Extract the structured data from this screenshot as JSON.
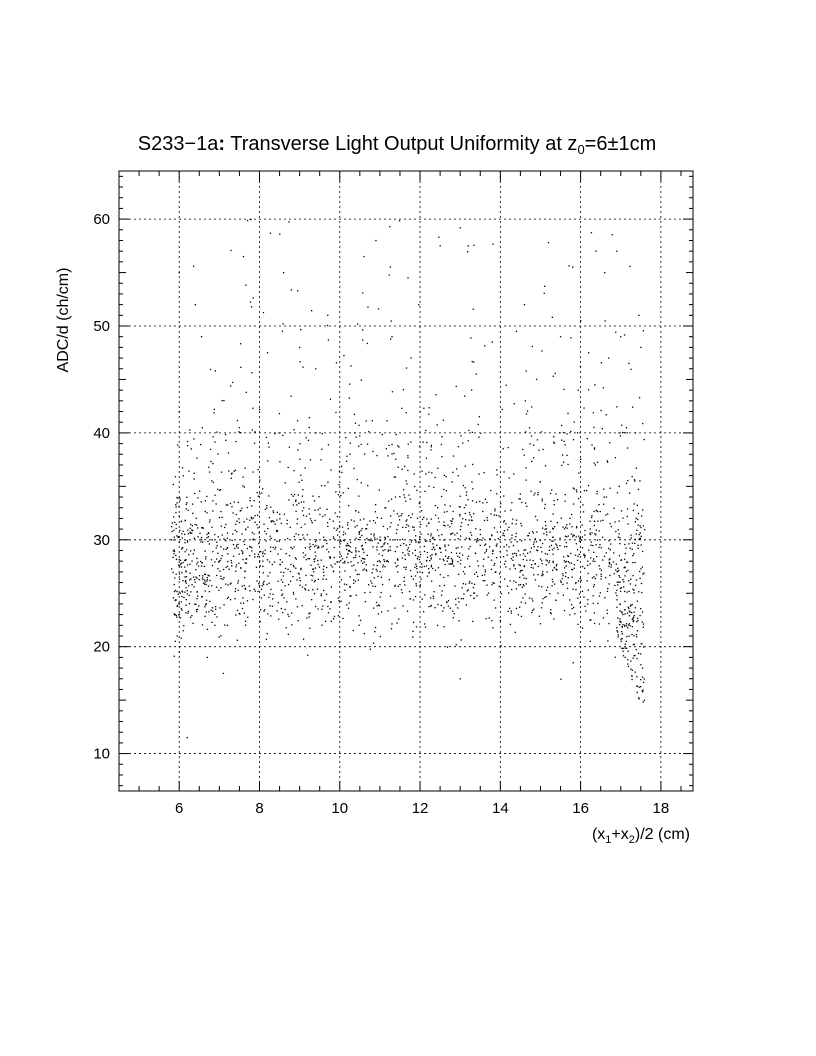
{
  "chart_data": {
    "type": "scatter",
    "title": {
      "main": "S233−1a",
      "colon": ":",
      "rest": " Transverse Light Output Uniformity at z",
      "sub": "0",
      "value": "=6±1cm"
    },
    "xlabel": {
      "a": "(x",
      "a_sub": "1",
      "b": "+x",
      "b_sub": "2",
      "c": ")/2 (cm)"
    },
    "ylabel": "ADC/d (ch/cm)",
    "xlim": [
      4.5,
      18.8
    ],
    "ylim": [
      6.5,
      64.5
    ],
    "xticks": [
      6,
      8,
      10,
      12,
      14,
      16,
      18
    ],
    "xtick_labels": [
      "6",
      "8",
      "10",
      "12",
      "14",
      "16",
      "18"
    ],
    "yticks": [
      10,
      20,
      30,
      40,
      50,
      60
    ],
    "ytick_labels": [
      "10",
      "20",
      "30",
      "40",
      "50",
      "60"
    ],
    "grid": true,
    "marker_color": "#000000",
    "distribution": {
      "x_range": [
        5.8,
        17.6
      ],
      "core_center_y": 28.5,
      "core_spread_y": 3.2,
      "halo_y_range": [
        20,
        40
      ],
      "sparse_upper_y_range": [
        40,
        60
      ],
      "drop_edge_x": [
        16.9,
        17.6
      ],
      "drop_edge_y_range": [
        13.5,
        24
      ]
    },
    "points": [
      [
        5.9,
        20.5
      ],
      [
        5.95,
        21.0
      ],
      [
        6.0,
        19.5
      ],
      [
        6.05,
        20.8
      ],
      [
        6.1,
        21.5
      ],
      [
        6.2,
        11.5
      ],
      [
        6.1,
        36.0
      ],
      [
        6.3,
        38.5
      ],
      [
        6.0,
        42.0
      ],
      [
        6.4,
        52.0
      ],
      [
        6.0,
        55.0
      ],
      [
        6.9,
        45.8
      ],
      [
        7.1,
        17.5
      ],
      [
        6.7,
        19.0
      ],
      [
        7.2,
        22.0
      ],
      [
        7.5,
        40.5
      ],
      [
        7.6,
        56.5
      ],
      [
        7.8,
        51.8
      ],
      [
        8.2,
        47.5
      ],
      [
        8.6,
        55.0
      ],
      [
        9.0,
        48.0
      ],
      [
        9.2,
        19.2
      ],
      [
        9.4,
        46.0
      ],
      [
        9.7,
        51.0
      ],
      [
        10.6,
        56.5
      ],
      [
        10.9,
        58.0
      ],
      [
        11.3,
        49.0
      ],
      [
        11.7,
        54.5
      ],
      [
        12.0,
        42.0
      ],
      [
        12.5,
        57.5
      ],
      [
        13.0,
        17.0
      ],
      [
        13.0,
        59.2
      ],
      [
        13.2,
        57.5
      ],
      [
        13.4,
        45.5
      ],
      [
        13.8,
        48.5
      ],
      [
        14.4,
        49.5
      ],
      [
        14.6,
        52.0
      ],
      [
        14.9,
        45.0
      ],
      [
        15.2,
        57.8
      ],
      [
        15.5,
        49.0
      ],
      [
        15.8,
        55.5
      ],
      [
        16.0,
        50.5
      ],
      [
        16.2,
        47.5
      ],
      [
        16.6,
        55.0
      ],
      [
        16.7,
        47.0
      ],
      [
        16.9,
        57.0
      ],
      [
        17.0,
        49.0
      ],
      [
        17.2,
        46.5
      ],
      [
        17.45,
        51.0
      ],
      [
        17.5,
        48.0
      ]
    ]
  }
}
